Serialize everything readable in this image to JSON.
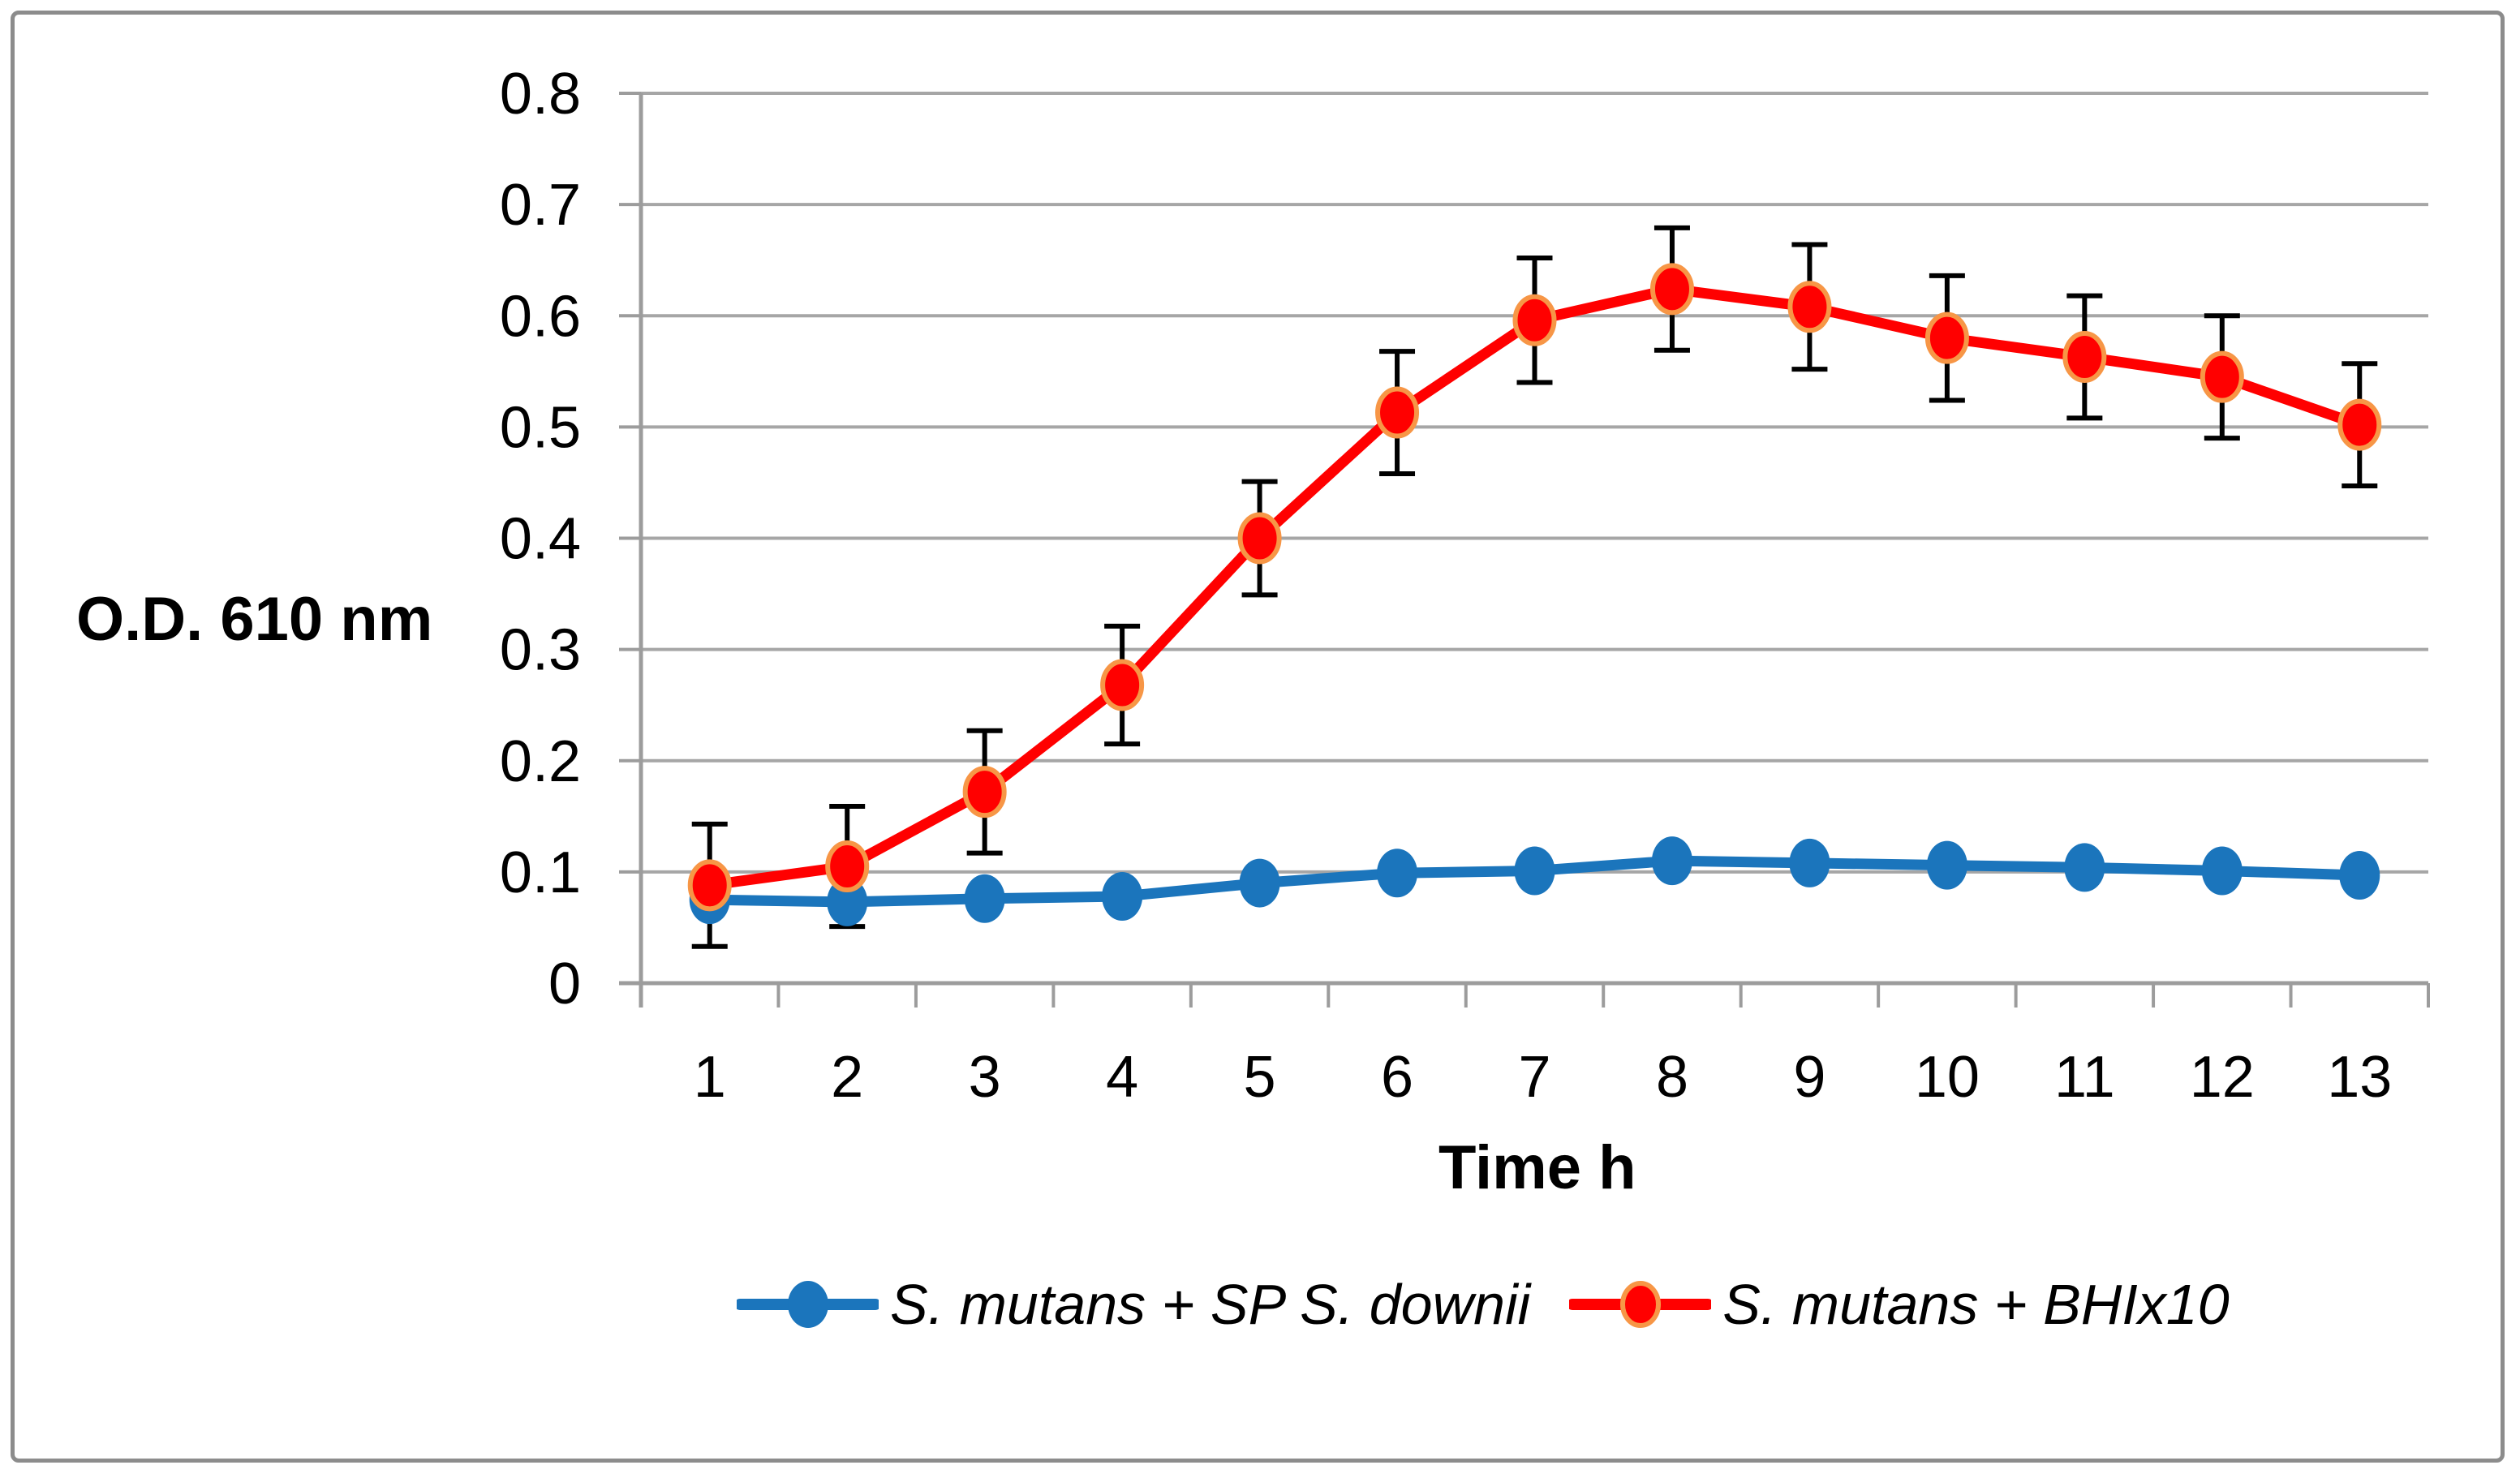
{
  "chart_data": {
    "type": "line",
    "title": "",
    "xlabel": "Time h",
    "ylabel": "O.D. 610 nm",
    "categories": [
      1,
      2,
      3,
      4,
      5,
      6,
      7,
      8,
      9,
      10,
      11,
      12,
      13
    ],
    "series": [
      {
        "name": "S. mutans + SP S. downii",
        "color": "#1B75BC",
        "marker": "circle",
        "values": [
          0.075,
          0.073,
          0.076,
          0.078,
          0.09,
          0.099,
          0.101,
          0.11,
          0.108,
          0.106,
          0.104,
          0.101,
          0.097
        ]
      },
      {
        "name": "S. mutans + BHIx10",
        "color": "#FF0000",
        "marker": "circle",
        "marker_ring_color": "#F79646",
        "values": [
          0.088,
          0.105,
          0.172,
          0.268,
          0.4,
          0.513,
          0.596,
          0.624,
          0.608,
          0.58,
          0.563,
          0.545,
          0.502
        ],
        "error_bars": [
          0.055,
          0.054,
          0.055,
          0.053,
          0.051,
          0.055,
          0.056,
          0.055,
          0.056,
          0.056,
          0.055,
          0.055,
          0.055
        ]
      }
    ],
    "ylim": [
      0,
      0.8
    ],
    "y_tick_labels": [
      "0",
      "0.1",
      "0.2",
      "0.3",
      "0.4",
      "0.5",
      "0.6",
      "0.7",
      "0.8"
    ],
    "grid": "horizontal",
    "legend_position": "bottom",
    "colors": {
      "gridline": "#A6A6A6",
      "axis": "#9C9C9C",
      "error_bar": "#000000",
      "frame_border": "#8C8C8C",
      "background": "#FFFFFF",
      "text": "#000000"
    }
  }
}
